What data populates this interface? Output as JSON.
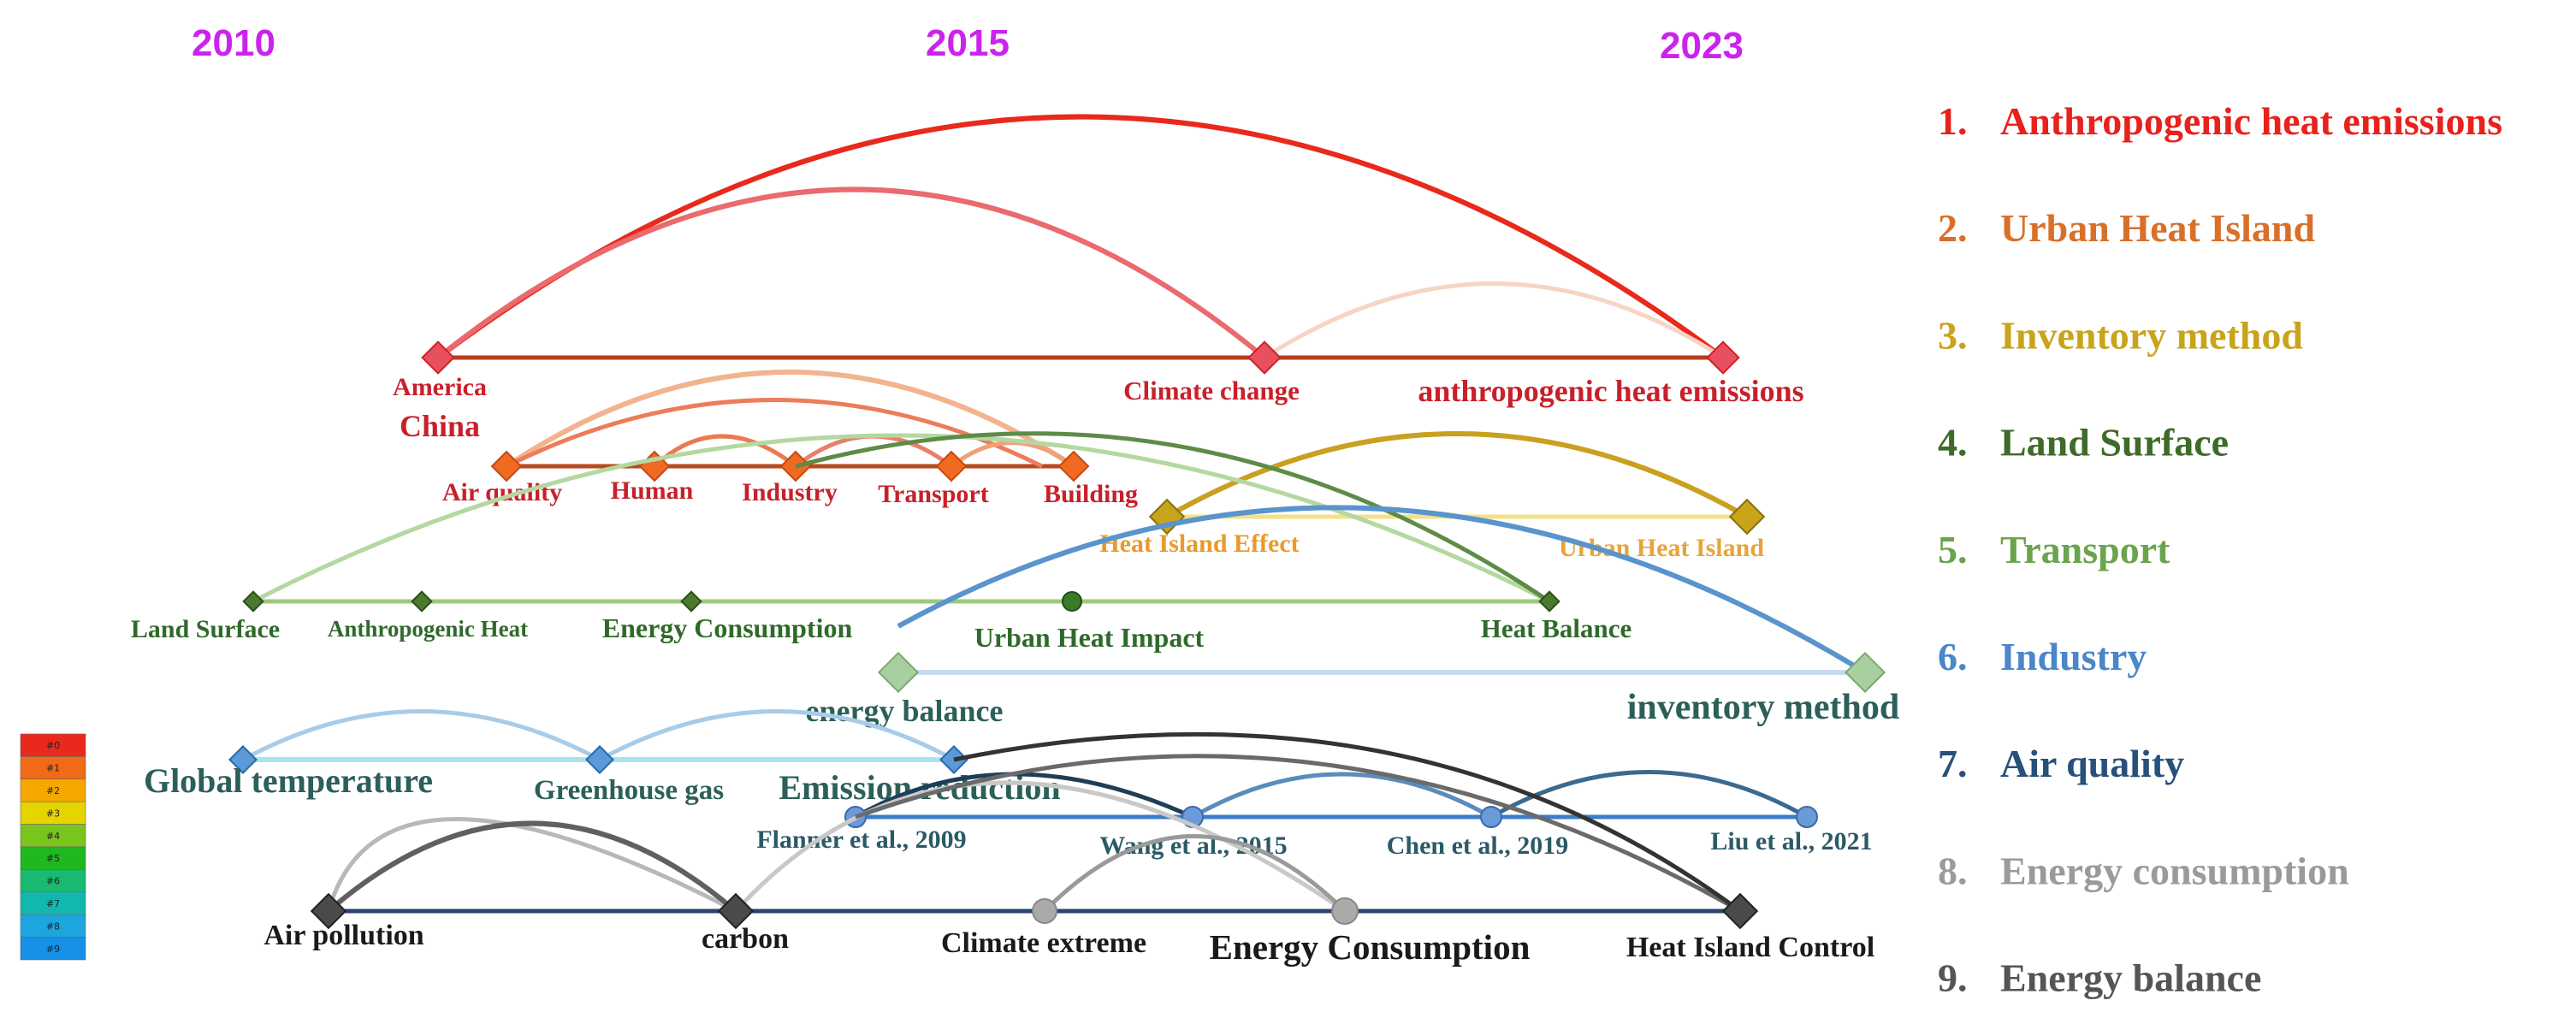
{
  "timeline": {
    "years": [
      "2010",
      "2015",
      "2023"
    ]
  },
  "color_scale": [
    "#0",
    "#1",
    "#2",
    "#3",
    "#4",
    "#5",
    "#6",
    "#7",
    "#8",
    "#9"
  ],
  "color_scale_colors": [
    "#e8291c",
    "#f06a18",
    "#f7a800",
    "#e6d400",
    "#7ac41e",
    "#20b820",
    "#1aba70",
    "#12b8b0",
    "#1ca6e0",
    "#1890e8"
  ],
  "legend": [
    {
      "num": "1.",
      "label": "Anthropogenic heat emissions",
      "color": "#e8211c"
    },
    {
      "num": "2.",
      "label": "Urban Heat Island",
      "color": "#d8702a"
    },
    {
      "num": "3.",
      "label": "Inventory method",
      "color": "#c9a41b"
    },
    {
      "num": "4.",
      "label": "Land Surface",
      "color": "#3f6b2a"
    },
    {
      "num": "5.",
      "label": "Transport",
      "color": "#6aa44c"
    },
    {
      "num": "6.",
      "label": "Industry",
      "color": "#4a86c8"
    },
    {
      "num": "7.",
      "label": "Air quality",
      "color": "#27507a"
    },
    {
      "num": "8.",
      "label": "Energy consumption",
      "color": "#9a9a9a"
    },
    {
      "num": "9.",
      "label": "Energy balance",
      "color": "#555555"
    }
  ],
  "clusters": {
    "c1": {
      "color": "#e8353a",
      "nodes": [
        "America",
        "Climate change",
        "anthropogenic heat emissions"
      ],
      "extra_label": "China"
    },
    "c2": {
      "color": "#f06a22",
      "nodes": [
        "Air quality",
        "Human",
        "Industry",
        "Transport",
        "Building"
      ]
    },
    "c3": {
      "color": "#c9a41b",
      "nodes": [
        "Heat Island Effect",
        "Urban Heat Island"
      ]
    },
    "c4": {
      "color": "#3f7a2a",
      "nodes": [
        "Land Surface",
        "Anthropogenic Heat",
        "Energy Consumption",
        "Urban Heat Impact",
        "Heat Balance"
      ]
    },
    "c5": {
      "color": "#a8cfa0",
      "nodes": [
        "energy balance",
        "inventory method"
      ]
    },
    "c6": {
      "color": "#5a9ad8",
      "nodes": [
        "Global temperature",
        "Greenhouse gas",
        "Emission reduction"
      ]
    },
    "c7": {
      "color": "#5a8ccc",
      "nodes": [
        "Flanner et al., 2009",
        "Wang et al., 2015",
        "Chen et al., 2019",
        "Liu et al., 2021"
      ]
    },
    "c8": {
      "color": "#444444",
      "nodes": [
        "Air pollution",
        "carbon",
        "Climate extreme",
        "Energy Consumption",
        "Heat Island Control"
      ]
    }
  }
}
